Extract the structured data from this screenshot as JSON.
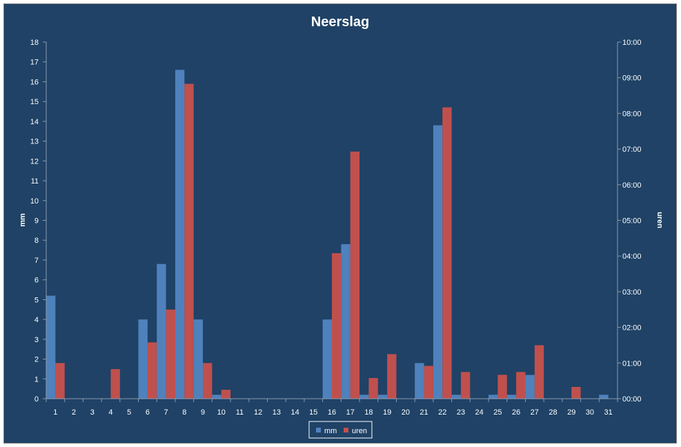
{
  "chart_data": {
    "type": "bar",
    "title": "Neerslag",
    "ylabel": "mm",
    "y2label": "uren",
    "ylim": [
      0,
      18
    ],
    "y2lim": [
      0,
      10
    ],
    "y_ticks": [
      "0",
      "1",
      "2",
      "3",
      "4",
      "5",
      "6",
      "7",
      "8",
      "9",
      "10",
      "11",
      "12",
      "13",
      "14",
      "15",
      "16",
      "17",
      "18"
    ],
    "y2_ticks": [
      "00:00",
      "01:00",
      "02:00",
      "03:00",
      "04:00",
      "05:00",
      "06:00",
      "07:00",
      "08:00",
      "09:00",
      "10:00"
    ],
    "categories": [
      "1",
      "2",
      "3",
      "4",
      "5",
      "6",
      "7",
      "8",
      "9",
      "10",
      "11",
      "12",
      "13",
      "14",
      "15",
      "16",
      "17",
      "18",
      "19",
      "20",
      "21",
      "22",
      "23",
      "24",
      "25",
      "26",
      "27",
      "28",
      "29",
      "30",
      "31"
    ],
    "series": [
      {
        "name": "mm",
        "axis": "left",
        "color": "#4f81bd",
        "values": [
          5.2,
          0,
          0,
          0,
          0,
          4,
          6.8,
          16.6,
          4,
          0.2,
          0,
          0,
          0,
          0,
          0,
          4,
          7.8,
          0.2,
          0.2,
          0,
          1.8,
          13.8,
          0.2,
          0,
          0.2,
          0.2,
          1.2,
          0,
          0,
          0,
          0.2
        ]
      },
      {
        "name": "uren",
        "axis": "right",
        "unit": "hours",
        "color": "#c0504d",
        "values": [
          1.0,
          0,
          0,
          0.83,
          0,
          1.58,
          2.5,
          8.83,
          1.0,
          0.25,
          0,
          0,
          0,
          0,
          0,
          4.08,
          6.93,
          0.58,
          1.25,
          0,
          0.92,
          8.17,
          0.75,
          0,
          0.67,
          0.75,
          1.5,
          0,
          0.33,
          0,
          0
        ]
      }
    ],
    "legend_position": "bottom",
    "grid": false
  }
}
